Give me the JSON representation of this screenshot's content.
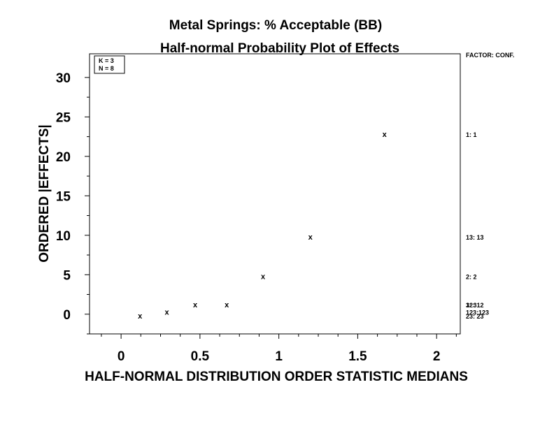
{
  "chart_data": {
    "type": "scatter",
    "title": "Metal Springs: % Acceptable (BB)",
    "subtitle": "Half-normal Probability Plot of Effects",
    "xlabel": "HALF-NORMAL DISTRIBUTION ORDER STATISTIC MEDIANS",
    "ylabel": "ORDERED |EFFECTS|",
    "xlim": [
      -0.2,
      2.15
    ],
    "ylim": [
      -2.5,
      33
    ],
    "x_ticks": [
      0,
      0.5,
      1,
      1.5,
      2
    ],
    "x_tick_labels": [
      "0",
      "0.5",
      "1",
      "1.5",
      "2"
    ],
    "y_ticks": [
      0,
      5,
      10,
      15,
      20,
      25,
      30
    ],
    "y_tick_labels": [
      "0",
      "5",
      "10",
      "15",
      "20",
      "25",
      "30"
    ],
    "marker": "x",
    "points": [
      {
        "x": 0.12,
        "y": -0.2
      },
      {
        "x": 0.29,
        "y": 0.3
      },
      {
        "x": 0.47,
        "y": 1.2
      },
      {
        "x": 0.67,
        "y": 1.2
      },
      {
        "x": 0.9,
        "y": 4.8
      },
      {
        "x": 1.2,
        "y": 9.8
      },
      {
        "x": 1.67,
        "y": 22.8
      }
    ],
    "info_box": [
      "K = 3",
      "N = 8"
    ],
    "factor_header": "FACTOR: CONF.",
    "factor_labels": [
      {
        "text": "1:   1",
        "y": 22.8
      },
      {
        "text": "13:  13",
        "y": 9.8
      },
      {
        "text": "2:   2",
        "y": 4.8
      },
      {
        "text": "12:  12",
        "y": 1.2
      },
      {
        "text": "3:   3",
        "y": 1.2
      },
      {
        "text": "123:123",
        "y": 0.3
      },
      {
        "text": "23:  23",
        "y": -0.2
      }
    ],
    "grid": false
  }
}
